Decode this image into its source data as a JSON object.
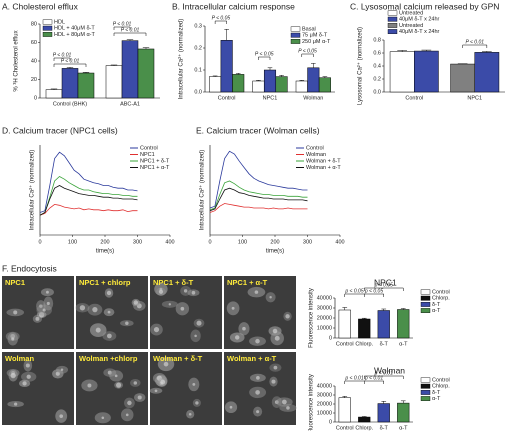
{
  "chart_data": [
    {
      "type": "bar",
      "title": "A. Cholesterol efflux",
      "ylabel": "% ³H Cholesterol efflux",
      "categories": [
        "Control (BHK)",
        "ABC-A1"
      ],
      "series": [
        {
          "name": "HDL",
          "color": "#ffffff",
          "values": [
            9,
            35
          ],
          "errors": [
            0.8,
            0.7
          ]
        },
        {
          "name": "HDL + 40μM δ-T",
          "color": "#3b4ba8",
          "values": [
            32,
            62
          ],
          "errors": [
            1.2,
            1.0
          ]
        },
        {
          "name": "HDL + 80μM α-T",
          "color": "#4a8f4a",
          "values": [
            27,
            53
          ],
          "errors": [
            0.8,
            1.5
          ]
        }
      ],
      "ylim": [
        0,
        80
      ],
      "yticks": [
        0,
        20,
        40,
        60,
        80
      ],
      "legend": "upper left",
      "annotations": [
        "P < 0.01",
        "P < 0.01",
        "P < 0.01",
        "P < 0.01"
      ]
    },
    {
      "type": "bar",
      "title": "B. Intracellular calcium response",
      "ylabel": "Intracellular Ca²⁺ (normalized)",
      "categories": [
        "Control",
        "NPC1",
        "Wolman"
      ],
      "series": [
        {
          "name": "Basal",
          "color": "#ffffff",
          "values": [
            0.07,
            0.05,
            0.05
          ],
          "errors": [
            0.003,
            0.003,
            0.003
          ]
        },
        {
          "name": "75 μM δ-T",
          "color": "#3b4ba8",
          "values": [
            0.235,
            0.1,
            0.11
          ],
          "errors": [
            0.05,
            0.01,
            0.02
          ]
        },
        {
          "name": "250 μM α-T",
          "color": "#4a8f4a",
          "values": [
            0.08,
            0.07,
            0.065
          ],
          "errors": [
            0.005,
            0.006,
            0.005
          ]
        }
      ],
      "ylim": [
        0,
        0.3
      ],
      "yticks": [
        {
          "value": 0,
          "label": "0.0"
        },
        0.1,
        0.2,
        0.3
      ],
      "legend": "upper right",
      "annotations": [
        "P < 0.05",
        "P < 0.05",
        "P < 0.05"
      ]
    },
    {
      "type": "bar",
      "title": "C. Lysosomal calcium released by GPN",
      "ylabel": "Lysosomal Ca²⁺ (normalized)",
      "categories": [
        "Control",
        "NPC1"
      ],
      "series": [
        {
          "name": "Untreated",
          "color": "#ffffff",
          "values": [
            0.62,
            null
          ],
          "errors": [
            0.02,
            null
          ]
        },
        {
          "name": "40μM δ-T x 24hr",
          "color": "#3b4ba8",
          "values": [
            0.63,
            null
          ],
          "errors": [
            0.015,
            null
          ]
        },
        {
          "name": "Untreated",
          "color": "#808080",
          "values": [
            null,
            0.43
          ],
          "errors": [
            null,
            0.005
          ]
        },
        {
          "name": "40μM δ-T x 24hr",
          "color": "#3b4ba8",
          "values": [
            null,
            0.61
          ],
          "errors": [
            null,
            0.015
          ]
        }
      ],
      "ylim": [
        0,
        0.8
      ],
      "yticks": [
        {
          "value": 0,
          "label": "0.0"
        },
        0.2,
        0.4,
        0.6,
        0.8
      ],
      "legend": "top",
      "annotations": [
        "P < 0.01"
      ]
    },
    {
      "type": "line",
      "title": "D. Calcium tracer (NPC1 cells)",
      "ylabel": "Intracellular Ca²⁺ (normalized)",
      "xlabel": "time(s)",
      "x": [
        0,
        15,
        30,
        45,
        60,
        75,
        90,
        105,
        120,
        135,
        150,
        165,
        180,
        195,
        210,
        225,
        240,
        255,
        270,
        285,
        300
      ],
      "series": [
        {
          "name": "Control",
          "color": "#2b3a9c",
          "values": [
            0.25,
            0.27,
            0.55,
            0.85,
            0.92,
            0.88,
            0.8,
            0.72,
            0.68,
            0.62,
            0.6,
            0.58,
            0.57,
            0.55,
            0.55,
            0.53,
            0.52,
            0.52,
            0.5,
            0.5,
            0.49
          ]
        },
        {
          "name": "NPC1",
          "color": "#e03030",
          "values": [
            0.22,
            0.24,
            0.3,
            0.34,
            0.33,
            0.31,
            0.3,
            0.29,
            0.3,
            0.28,
            0.29,
            0.28,
            0.28,
            0.27,
            0.28,
            0.27,
            0.27,
            0.28,
            0.26,
            0.27,
            0.27
          ]
        },
        {
          "name": "NPC1 + δ-T",
          "color": "#3aa43a",
          "values": [
            0.22,
            0.25,
            0.42,
            0.6,
            0.65,
            0.62,
            0.58,
            0.55,
            0.52,
            0.5,
            0.5,
            0.48,
            0.47,
            0.46,
            0.46,
            0.45,
            0.45,
            0.44,
            0.44,
            0.43,
            0.43
          ]
        },
        {
          "name": "NPC1 + α-T",
          "color": "#111111",
          "values": [
            0.22,
            0.25,
            0.4,
            0.52,
            0.55,
            0.52,
            0.5,
            0.48,
            0.46,
            0.45,
            0.44,
            0.44,
            0.43,
            0.42,
            0.42,
            0.41,
            0.41,
            0.4,
            0.4,
            0.4,
            0.39
          ]
        }
      ],
      "xlim": [
        0,
        400
      ],
      "xticks": [
        0,
        100,
        200,
        300,
        400
      ],
      "ylim": [
        0,
        1
      ],
      "legend": "upper right"
    },
    {
      "type": "line",
      "title": "E. Calcium tracer (Wolman cells)",
      "ylabel": "Intracellular Ca²⁺ (normalized)",
      "xlabel": "time(s)",
      "x": [
        0,
        15,
        30,
        45,
        60,
        75,
        90,
        105,
        120,
        135,
        150,
        165,
        180,
        195,
        210,
        225,
        240,
        255,
        270,
        285,
        300
      ],
      "series": [
        {
          "name": "Control",
          "color": "#2b3a9c",
          "values": [
            0.3,
            0.32,
            0.6,
            0.85,
            0.93,
            0.9,
            0.82,
            0.75,
            0.68,
            0.63,
            0.6,
            0.58,
            0.56,
            0.55,
            0.54,
            0.53,
            0.52,
            0.52,
            0.51,
            0.5,
            0.5
          ]
        },
        {
          "name": "Wolman",
          "color": "#e03030",
          "values": [
            0.25,
            0.27,
            0.32,
            0.35,
            0.34,
            0.33,
            0.32,
            0.31,
            0.31,
            0.3,
            0.3,
            0.3,
            0.29,
            0.3,
            0.29,
            0.29,
            0.3,
            0.29,
            0.29,
            0.29,
            0.29
          ]
        },
        {
          "name": "Wolman + δ-T",
          "color": "#3aa43a",
          "values": [
            0.28,
            0.3,
            0.45,
            0.58,
            0.6,
            0.57,
            0.53,
            0.5,
            0.48,
            0.47,
            0.46,
            0.45,
            0.45,
            0.44,
            0.44,
            0.44,
            0.43,
            0.43,
            0.43,
            0.42,
            0.42
          ]
        },
        {
          "name": "Wolman + α-T",
          "color": "#111111",
          "values": [
            0.27,
            0.29,
            0.4,
            0.5,
            0.52,
            0.5,
            0.47,
            0.46,
            0.44,
            0.43,
            0.42,
            0.41,
            0.41,
            0.4,
            0.4,
            0.4,
            0.39,
            0.39,
            0.39,
            0.39,
            0.38
          ]
        }
      ],
      "xlim": [
        0,
        400
      ],
      "xticks": [
        0,
        100,
        200,
        300,
        400
      ],
      "ylim": [
        0,
        1
      ],
      "legend": "upper right"
    },
    {
      "type": "bar",
      "title": "NPC1",
      "ylabel": "Fluorescence intensity",
      "categories": [
        "Control",
        "Chlorp.",
        "δ-T",
        "α-T"
      ],
      "values": [
        28000,
        19000,
        27500,
        28500
      ],
      "errors": [
        2500,
        800,
        1500,
        1000
      ],
      "colors": [
        "#ffffff",
        "#111111",
        "#3b4ba8",
        "#4a8f4a"
      ],
      "ylim": [
        0,
        40000
      ],
      "yticks": [
        0,
        10000,
        20000,
        30000,
        40000
      ],
      "legend": "right",
      "annotations": [
        "p < 0.05",
        "p < 0.05",
        "p < 0.05"
      ]
    },
    {
      "type": "bar",
      "title": "Wolman",
      "ylabel": "Fluorescence intensity",
      "categories": [
        "Control",
        "Chlorp.",
        "δ-T",
        "α-T"
      ],
      "values": [
        27000,
        5500,
        20500,
        21000
      ],
      "errors": [
        1500,
        600,
        2500,
        2500
      ],
      "colors": [
        "#ffffff",
        "#111111",
        "#3b4ba8",
        "#4a8f4a"
      ],
      "ylim": [
        0,
        40000
      ],
      "yticks": [
        0,
        10000,
        20000,
        30000,
        40000
      ],
      "legend": "right",
      "annotations": [
        "p < 0.01",
        "p < 0.01",
        "p < 0.01"
      ]
    }
  ],
  "images": {
    "title": "F. Endocytosis",
    "panels": [
      "NPC1",
      "NPC1 + chlorp",
      "NPC1 + δ-T",
      "NPC1 + α-T",
      "Wolman",
      "Wolman +chlorp",
      "Wolman + δ-T",
      "Wolman + α-T"
    ]
  }
}
